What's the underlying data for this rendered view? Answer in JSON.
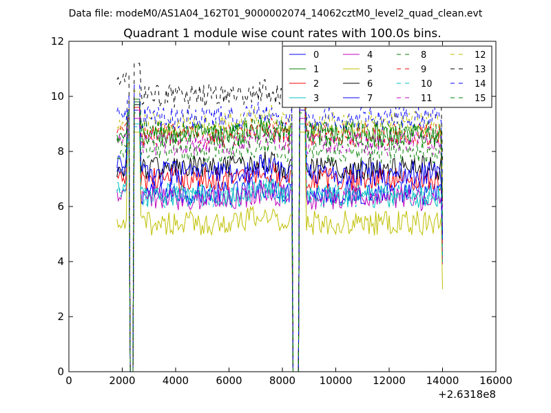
{
  "chart_data": {
    "type": "line",
    "suptitle": "Data file: modeM0/AS1A04_162T01_9000002074_14062cztM0_level2_quad_clean.evt",
    "title": "Quadrant 1 module wise count rates with 100.0s bins.",
    "xlabel": "",
    "ylabel": "",
    "x_offset_label": "+2.6318e8",
    "xlim": [
      0,
      16000
    ],
    "ylim": [
      0,
      12
    ],
    "x_ticks": [
      0,
      2000,
      4000,
      6000,
      8000,
      10000,
      12000,
      14000,
      16000
    ],
    "y_ticks": [
      0,
      2,
      4,
      6,
      8,
      10,
      12
    ],
    "grid": false,
    "legend": {
      "position": "top-right",
      "columns": 4
    },
    "gaps": [
      [
        2200,
        2600
      ],
      [
        8350,
        8800
      ]
    ],
    "series": [
      {
        "name": "0",
        "color": "#0000ff",
        "style": "solid",
        "base": 6.5,
        "start": 7.2,
        "spike": 9.5
      },
      {
        "name": "1",
        "color": "#008000",
        "style": "solid",
        "base": 8.6,
        "start": 8.5,
        "spike": 9.8
      },
      {
        "name": "2",
        "color": "#ff0000",
        "style": "solid",
        "base": 7.0,
        "start": 7.0,
        "spike": 9.6
      },
      {
        "name": "3",
        "color": "#00bfbf",
        "style": "solid",
        "base": 6.4,
        "start": 6.7,
        "spike": 9.0
      },
      {
        "name": "4",
        "color": "#bf00bf",
        "style": "solid",
        "base": 6.3,
        "start": 6.4,
        "spike": 9.2
      },
      {
        "name": "5",
        "color": "#bfbf00",
        "style": "solid",
        "base": 5.4,
        "start": 5.3,
        "spike": 8.7
      },
      {
        "name": "6",
        "color": "#000000",
        "style": "solid",
        "base": 7.4,
        "start": 7.3,
        "spike": 9.7
      },
      {
        "name": "7",
        "color": "#0000ff",
        "style": "solid",
        "base": 7.2,
        "start": 7.6,
        "spike": 9.9
      },
      {
        "name": "8",
        "color": "#008000",
        "style": "dashed",
        "base": 8.0,
        "start": 7.9,
        "spike": 9.4
      },
      {
        "name": "9",
        "color": "#ff0000",
        "style": "dashed",
        "base": 8.6,
        "start": 8.8,
        "spike": 9.6
      },
      {
        "name": "10",
        "color": "#00bfbf",
        "style": "dashed",
        "base": 6.4,
        "start": 6.6,
        "spike": 8.9
      },
      {
        "name": "11",
        "color": "#bf00bf",
        "style": "dashed",
        "base": 8.3,
        "start": 8.5,
        "spike": 9.5
      },
      {
        "name": "12",
        "color": "#bfbf00",
        "style": "dashed",
        "base": 9.0,
        "start": 8.9,
        "spike": 10.2
      },
      {
        "name": "13",
        "color": "#000000",
        "style": "dashed",
        "base": 10.0,
        "start": 10.6,
        "spike": 11.2
      },
      {
        "name": "14",
        "color": "#0000ff",
        "style": "dashed",
        "base": 9.2,
        "start": 9.4,
        "spike": 10.4
      },
      {
        "name": "15",
        "color": "#008000",
        "style": "dashed",
        "base": 8.7,
        "start": 8.4,
        "spike": 9.9
      }
    ]
  }
}
